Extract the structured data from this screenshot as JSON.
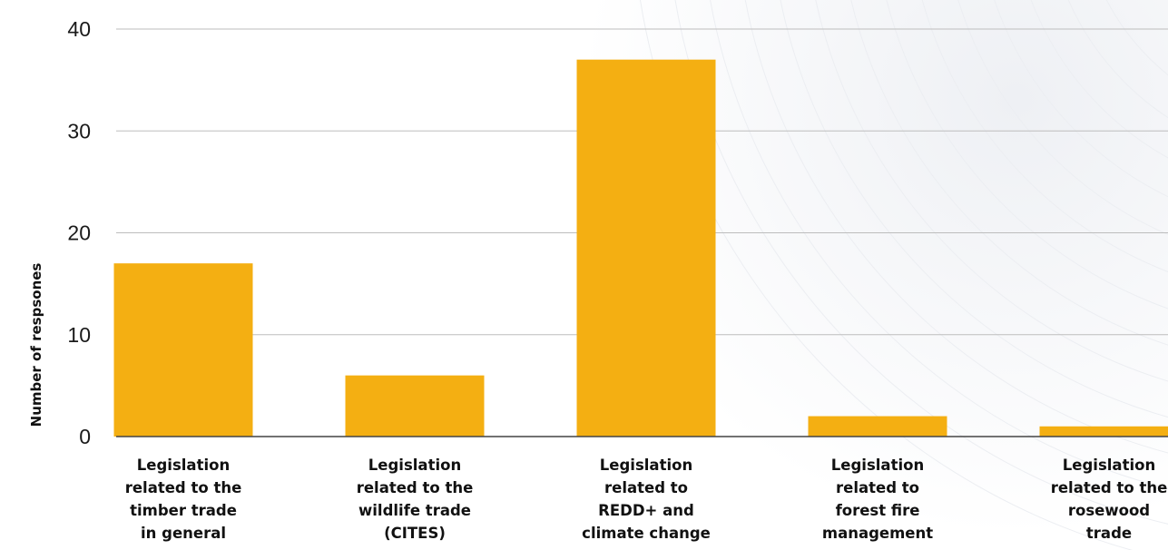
{
  "chart_data": {
    "type": "bar",
    "ylabel": "Number of respsones",
    "ylim": [
      0,
      40
    ],
    "yticks": [
      0,
      10,
      20,
      30,
      40
    ],
    "grid": true,
    "categories": [
      [
        "Legislation",
        "related to the",
        "timber trade",
        "in general"
      ],
      [
        "Legislation",
        "related to the",
        "wildlife trade",
        "(CITES)"
      ],
      [
        "Legislation",
        "related to",
        "REDD+ and",
        "climate change"
      ],
      [
        "Legislation",
        "related to",
        "forest fire",
        "management"
      ],
      [
        "Legislation",
        "related to the",
        "rosewood",
        "trade"
      ]
    ],
    "values": [
      17,
      6,
      37,
      2,
      1
    ]
  },
  "colors": {
    "bar": "#F4AF12",
    "grid": "#bdbdbd",
    "axis": "#444444"
  }
}
